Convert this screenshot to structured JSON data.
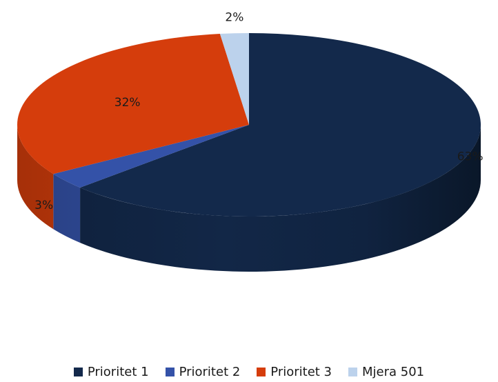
{
  "chart_data": {
    "type": "pie",
    "style": "3d",
    "title": "",
    "slices": [
      {
        "label": "Prioritet 1",
        "value": 63,
        "label_text": "63%",
        "color": "#13294b"
      },
      {
        "label": "Prioritet 2",
        "value": 3,
        "label_text": "3%",
        "color": "#3452a8"
      },
      {
        "label": "Prioritet 3",
        "value": 32,
        "label_text": "32%",
        "color": "#d53d0c"
      },
      {
        "label": "Mjera 501",
        "value": 2,
        "label_text": "2%",
        "color": "#bcd2ec"
      }
    ],
    "legend_position": "bottom"
  }
}
